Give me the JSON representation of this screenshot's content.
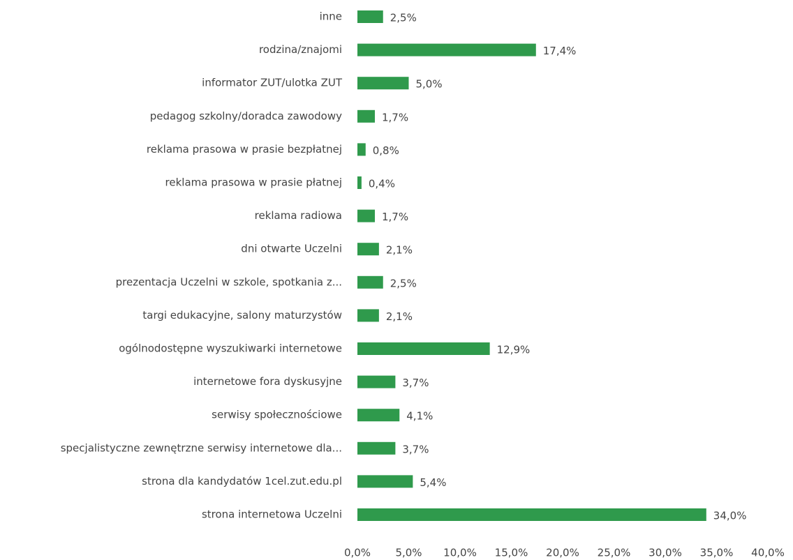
{
  "chart_data": {
    "type": "hbar",
    "categories": [
      "inne",
      "rodzina/znajomi",
      "informator ZUT/ulotka ZUT",
      "pedagog szkolny/doradca zawodowy",
      "reklama prasowa w prasie bezpłatnej",
      "reklama prasowa w prasie płatnej",
      "reklama radiowa",
      "dni otwarte Uczelni",
      "prezentacja Uczelni w szkole, spotkania z...",
      "targi edukacyjne, salony maturzystów",
      "ogólnodostępne wyszukiwarki internetowe",
      "internetowe fora dyskusyjne",
      "serwisy społecznościowe",
      "specjalistyczne zewnętrzne serwisy internetowe dla...",
      "strona dla kandydatów 1cel.zut.edu.pl",
      "strona internetowa Uczelni"
    ],
    "values": [
      2.5,
      17.4,
      5.0,
      1.7,
      0.8,
      0.4,
      1.7,
      2.1,
      2.5,
      2.1,
      12.9,
      3.7,
      4.1,
      3.7,
      5.4,
      34.0
    ],
    "value_labels": [
      "2,5%",
      "17,4%",
      "5,0%",
      "1,7%",
      "0,8%",
      "0,4%",
      "1,7%",
      "2,1%",
      "2,5%",
      "2,1%",
      "12,9%",
      "3,7%",
      "4,1%",
      "3,7%",
      "5,4%",
      "34,0%"
    ],
    "color": "#2f9a4c",
    "xlim": [
      0,
      40
    ],
    "xticks": [
      {
        "value": 0,
        "label": "0,0%"
      },
      {
        "value": 5,
        "label": "5,0%"
      },
      {
        "value": 10,
        "label": "10,0%"
      },
      {
        "value": 15,
        "label": "15,0%"
      },
      {
        "value": 20,
        "label": "20,0%"
      },
      {
        "value": 25,
        "label": "25,0%"
      },
      {
        "value": 30,
        "label": "30,0%"
      },
      {
        "value": 35,
        "label": "35,0%"
      },
      {
        "value": 40,
        "label": "40,0%"
      }
    ]
  }
}
